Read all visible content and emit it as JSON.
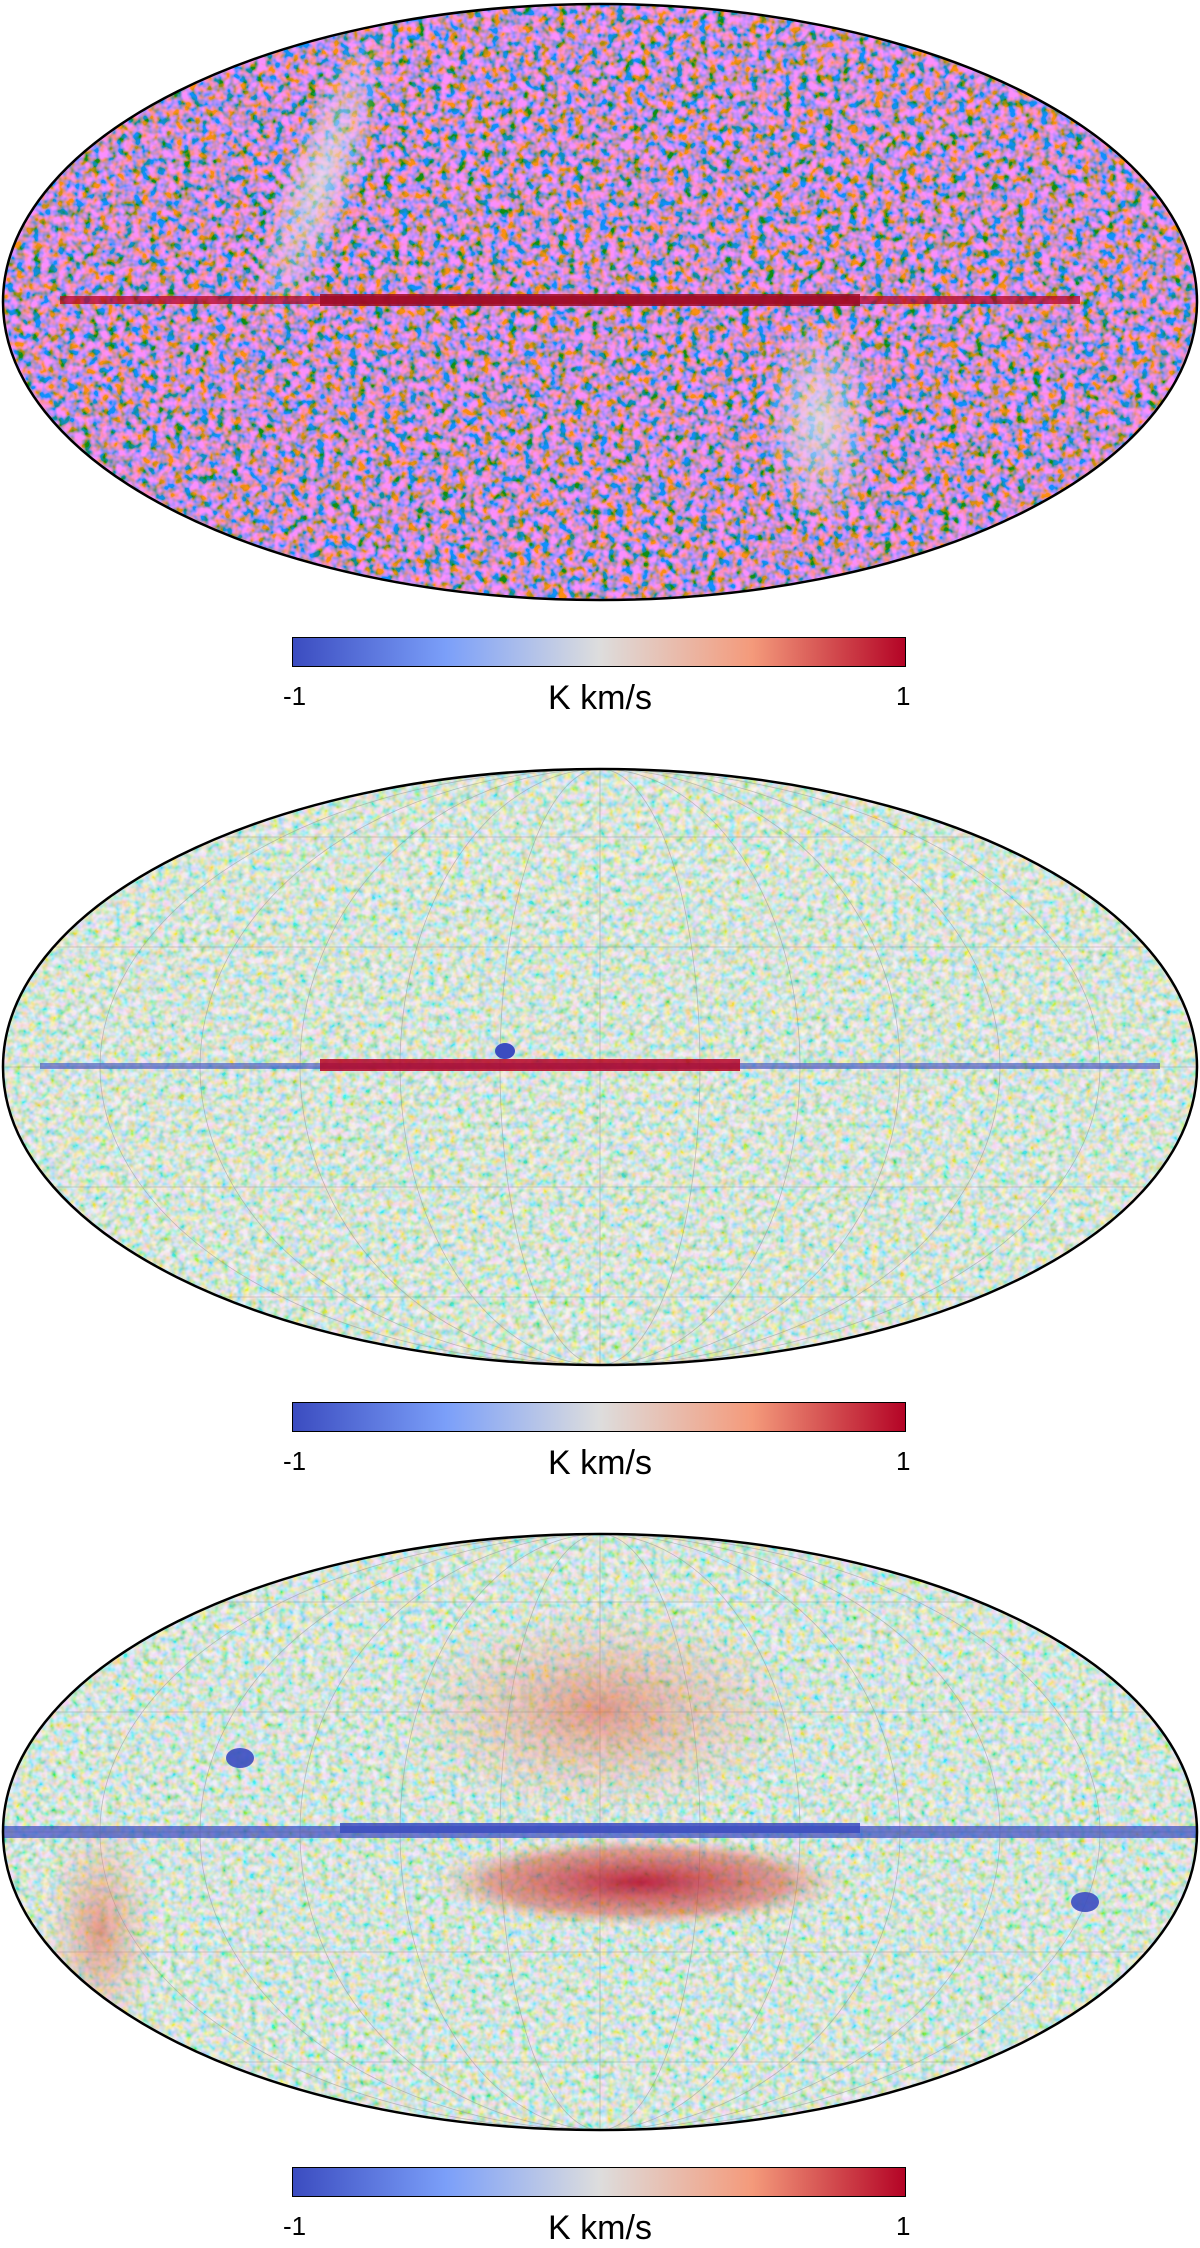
{
  "colors": {
    "cmap_low": "#3b4cc0",
    "cmap_mid": "#dddddd",
    "cmap_high": "#b40426",
    "background": "#ffffff",
    "outline": "#000000",
    "graticule": "#b0b0b0"
  },
  "panels": [
    {
      "colorbar": {
        "min_label": "-1",
        "max_label": "1",
        "unit_label": "K km/s"
      },
      "graticule": false
    },
    {
      "colorbar": {
        "min_label": "-1",
        "max_label": "1",
        "unit_label": "K km/s"
      },
      "graticule": true
    },
    {
      "colorbar": {
        "min_label": "-1",
        "max_label": "1",
        "unit_label": "K km/s"
      },
      "graticule": true
    }
  ]
}
